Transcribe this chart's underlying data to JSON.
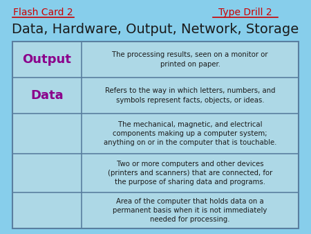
{
  "bg_color": "#87CEEB",
  "title": "Data, Hardware, Output, Network, Storage",
  "title_fontsize": 14,
  "title_color": "#1a1a1a",
  "flash_card_text": "Flash Card 2",
  "type_drill_text": "Type Drill 2",
  "header_color": "#cc0000",
  "header_fontsize": 10,
  "table_bg": "#add8e6",
  "table_border": "#5a7fa0",
  "rows": [
    {
      "label": "Output",
      "label_color": "#8B008B",
      "definition": "The processing results, seen on a monitor or\nprinted on paper.",
      "def_color": "#1a1a1a"
    },
    {
      "label": "Data",
      "label_color": "#8B008B",
      "definition": "Refers to the way in which letters, numbers, and\nsymbols represent facts, objects, or ideas.",
      "def_color": "#1a1a1a"
    },
    {
      "label": "",
      "label_color": "#1a1a1a",
      "definition": "The mechanical, magnetic, and electrical\ncomponents making up a computer system;\nanything on or in the computer that is touchable.",
      "def_color": "#1a1a1a"
    },
    {
      "label": "",
      "label_color": "#1a1a1a",
      "definition": "Two or more computers and other devices\n(printers and scanners) that are connected, for\nthe purpose of sharing data and programs.",
      "def_color": "#1a1a1a"
    },
    {
      "label": "",
      "label_color": "#1a1a1a",
      "definition": "Area of the computer that holds data on a\npermanent basis when it is not immediately\nneeded for processing.",
      "def_color": "#1a1a1a"
    }
  ]
}
